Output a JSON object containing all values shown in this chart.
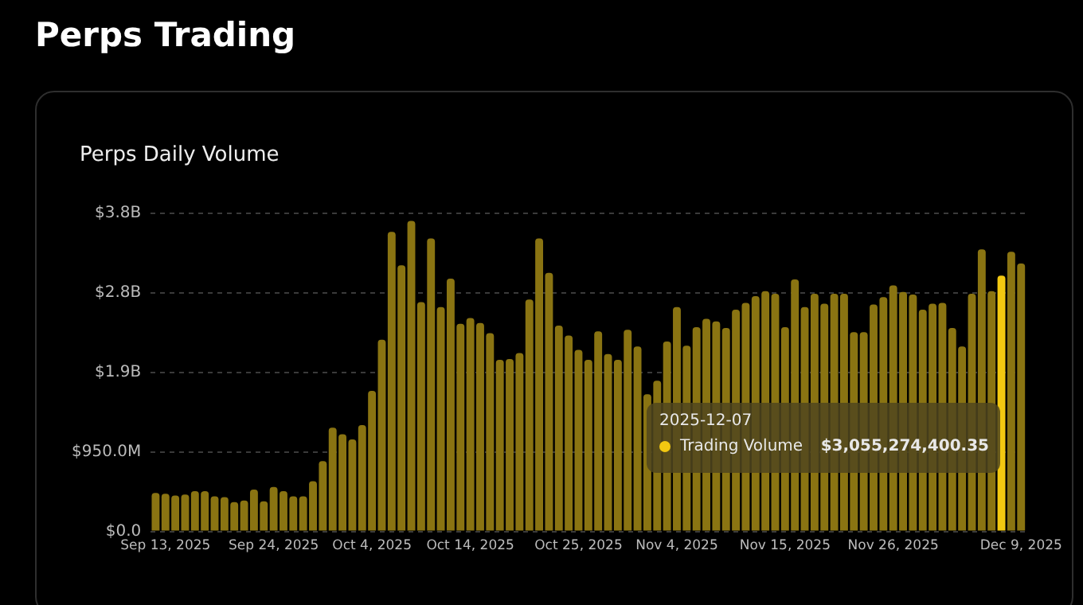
{
  "chart_data": {
    "type": "bar",
    "title": "Perps Trading",
    "subtitle": "Perps Daily Volume",
    "categories": [
      null,
      "Sep 13, 2025",
      null,
      null,
      null,
      null,
      null,
      null,
      null,
      null,
      null,
      null,
      "Sep 24, 2025",
      null,
      null,
      null,
      null,
      null,
      null,
      null,
      null,
      null,
      "Oct 4, 2025",
      null,
      null,
      null,
      null,
      null,
      null,
      null,
      null,
      null,
      "Oct 14, 2025",
      null,
      null,
      null,
      null,
      null,
      null,
      null,
      null,
      null,
      null,
      "Oct 25, 2025",
      null,
      null,
      null,
      null,
      null,
      null,
      null,
      null,
      null,
      "Nov 4, 2025",
      null,
      null,
      null,
      null,
      null,
      null,
      null,
      null,
      null,
      null,
      "Nov 15, 2025",
      null,
      null,
      null,
      null,
      null,
      null,
      null,
      null,
      null,
      null,
      "Nov 26, 2025",
      null,
      null,
      null,
      null,
      null,
      null,
      null,
      null,
      null,
      null,
      null,
      null,
      "Dec 9, 2025"
    ],
    "values": [
      460000000,
      450000000,
      430000000,
      440000000,
      480000000,
      480000000,
      420000000,
      410000000,
      350000000,
      370000000,
      500000000,
      360000000,
      530000000,
      480000000,
      420000000,
      420000000,
      600000000,
      840000000,
      1240000000,
      1160000000,
      1100000000,
      1270000000,
      1680000000,
      2290000000,
      3580000000,
      3180000000,
      3710000000,
      2740000000,
      3500000000,
      2680000000,
      3020000000,
      2480000000,
      2550000000,
      2490000000,
      2370000000,
      2050000000,
      2060000000,
      2130000000,
      2770000000,
      3500000000,
      3090000000,
      2460000000,
      2340000000,
      2170000000,
      2050000000,
      2390000000,
      2120000000,
      2050000000,
      2410000000,
      2210000000,
      1640000000,
      1800000000,
      2270000000,
      2680000000,
      2220000000,
      2440000000,
      2540000000,
      2510000000,
      2430000000,
      2650000000,
      2730000000,
      2810000000,
      2870000000,
      2840000000,
      2440000000,
      3010000000,
      2680000000,
      2840000000,
      2720000000,
      2840000000,
      2840000000,
      2380000000,
      2380000000,
      2710000000,
      2800000000,
      2940000000,
      2860000000,
      2830000000,
      2650000000,
      2720000000,
      2730000000,
      2430000000,
      2210000000,
      2840000000,
      3370000000,
      2870000000,
      3055274400.35,
      3340000000,
      3200000000
    ],
    "colors": [
      "#8a7412",
      "#8a7412",
      "#8a7412",
      "#8a7412",
      "#8a7412",
      "#8a7412",
      "#8a7412",
      "#8a7412",
      "#8a7412",
      "#8a7412",
      "#8a7412",
      "#8a7412",
      "#8a7412",
      "#8a7412",
      "#8a7412",
      "#8a7412",
      "#8a7412",
      "#8a7412",
      "#8a7412",
      "#8a7412",
      "#8a7412",
      "#8a7412",
      "#8a7412",
      "#8a7412",
      "#8a7412",
      "#8a7412",
      "#8a7412",
      "#8a7412",
      "#8a7412",
      "#8a7412",
      "#8a7412",
      "#8a7412",
      "#8a7412",
      "#8a7412",
      "#8a7412",
      "#8a7412",
      "#8a7412",
      "#8a7412",
      "#8a7412",
      "#8a7412",
      "#8a7412",
      "#8a7412",
      "#8a7412",
      "#8a7412",
      "#8a7412",
      "#8a7412",
      "#8a7412",
      "#8a7412",
      "#8a7412",
      "#8a7412",
      "#8a7412",
      "#8a7412",
      "#8a7412",
      "#8a7412",
      "#8a7412",
      "#8a7412",
      "#8a7412",
      "#8a7412",
      "#8a7412",
      "#8a7412",
      "#8a7412",
      "#8a7412",
      "#8a7412",
      "#8a7412",
      "#8a7412",
      "#8a7412",
      "#8a7412",
      "#8a7412",
      "#8a7412",
      "#8a7412",
      "#8a7412",
      "#8a7412",
      "#8a7412",
      "#8a7412",
      "#8a7412",
      "#8a7412",
      "#8a7412",
      "#8a7412",
      "#8a7412",
      "#8a7412",
      "#8a7412",
      "#8a7412",
      "#8a7412",
      "#8a7412",
      "#8a7412",
      "#8a7412",
      "#f2c811",
      "#8a7412",
      "#8a7412"
    ],
    "ylim": [
      0,
      3800000000
    ],
    "yticks": [
      {
        "value": 0,
        "label": "$0.0"
      },
      {
        "value": 950000000,
        "label": "$950.0M"
      },
      {
        "value": 1900000000,
        "label": "$1.9B"
      },
      {
        "value": 2850000000,
        "label": "$2.8B"
      },
      {
        "value": 3800000000,
        "label": "$3.8B"
      }
    ],
    "grid": "y",
    "legend": false,
    "annotations": [
      "2025-12-07",
      "Trading Volume",
      "$3,055,274,400.35"
    ]
  }
}
